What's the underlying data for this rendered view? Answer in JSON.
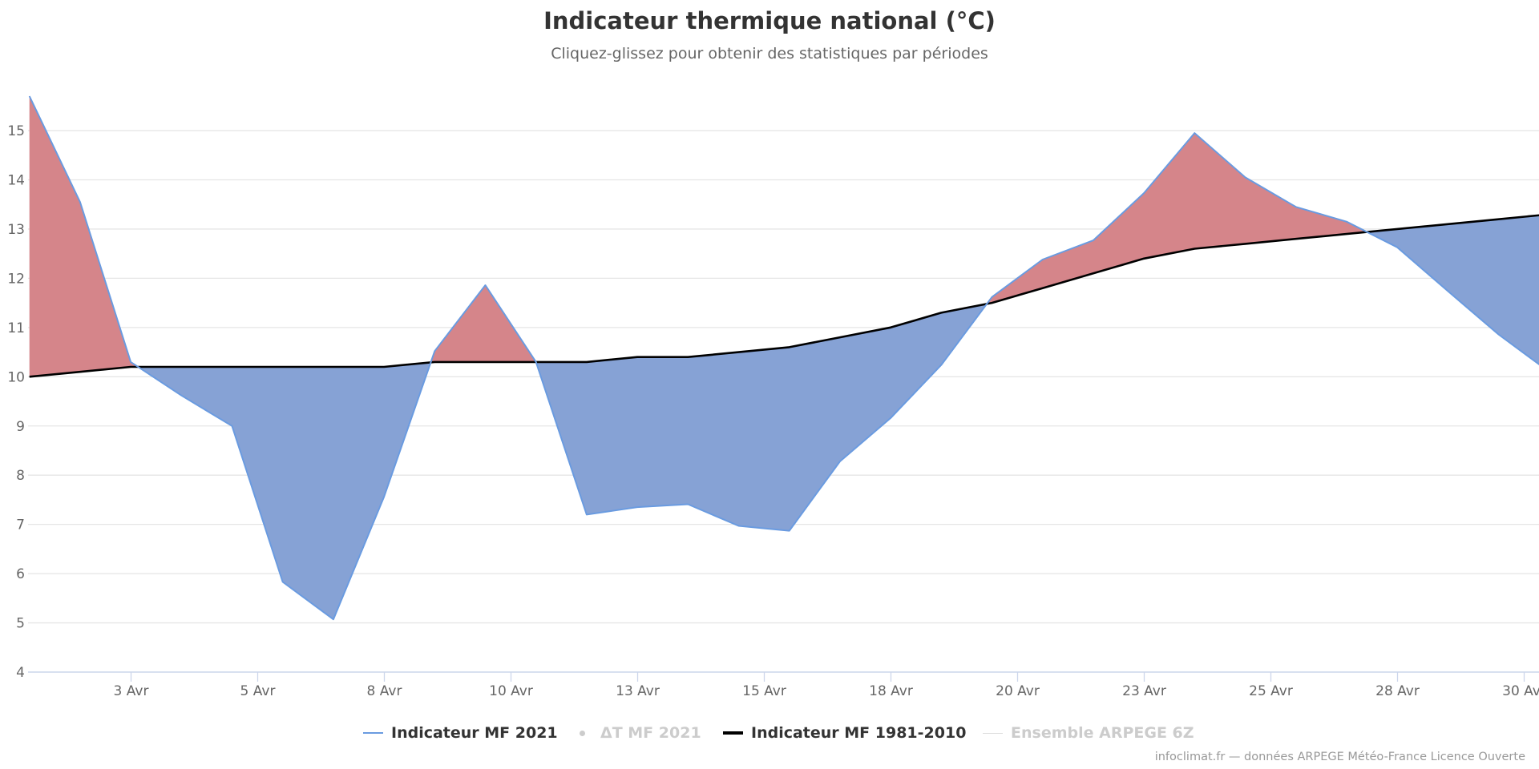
{
  "chart_data": {
    "type": "area",
    "title": "Indicateur thermique national (°C)",
    "subtitle": "Cliquez-glissez pour obtenir des statistiques par périodes",
    "xlabel": "",
    "ylabel": "",
    "ylim": [
      4,
      15.8
    ],
    "xlim_days": [
      1,
      30.8
    ],
    "grid": true,
    "y_ticks": [
      4,
      5,
      6,
      7,
      8,
      9,
      10,
      11,
      12,
      13,
      14,
      15
    ],
    "x_ticks": [
      {
        "day": 2.5,
        "label": "3 Avr"
      },
      {
        "day": 5.0,
        "label": "5 Avr"
      },
      {
        "day": 7.5,
        "label": "8 Avr"
      },
      {
        "day": 10.0,
        "label": "10 Avr"
      },
      {
        "day": 12.5,
        "label": "13 Avr"
      },
      {
        "day": 15.0,
        "label": "15 Avr"
      },
      {
        "day": 17.5,
        "label": "18 Avr"
      },
      {
        "day": 20.0,
        "label": "20 Avr"
      },
      {
        "day": 22.5,
        "label": "23 Avr"
      },
      {
        "day": 25.0,
        "label": "25 Avr"
      },
      {
        "day": 27.5,
        "label": "28 Avr"
      },
      {
        "day": 30.0,
        "label": "30 Avr"
      }
    ],
    "x_days": [
      1,
      2,
      3,
      4,
      5,
      6,
      7,
      8,
      9,
      10,
      11,
      12,
      13,
      14,
      15,
      16,
      17,
      18,
      19,
      20,
      21,
      22,
      23,
      24,
      25,
      26,
      27,
      28,
      29,
      30,
      31
    ],
    "series": [
      {
        "name": "Indicateur MF 2021",
        "color": "#6a9be0",
        "visible": true,
        "values": [
          15.7,
          13.55,
          10.3,
          9.62,
          9.0,
          5.83,
          5.07,
          7.56,
          10.52,
          11.86,
          10.3,
          7.2,
          7.35,
          7.41,
          6.97,
          6.87,
          8.28,
          9.16,
          10.24,
          11.62,
          12.38,
          12.77,
          13.73,
          14.95,
          14.05,
          13.45,
          13.15,
          12.63,
          11.74,
          10.86,
          10.1
        ]
      },
      {
        "name": "ΔT MF 2021",
        "color": "#cccccc",
        "visible": false,
        "values": []
      },
      {
        "name": "Indicateur MF 1981-2010",
        "color": "#000000",
        "visible": true,
        "values": [
          10.0,
          10.1,
          10.2,
          10.2,
          10.2,
          10.2,
          10.2,
          10.2,
          10.3,
          10.3,
          10.3,
          10.3,
          10.4,
          10.4,
          10.5,
          10.6,
          10.8,
          11.0,
          11.3,
          11.5,
          11.8,
          12.1,
          12.4,
          12.6,
          12.7,
          12.8,
          12.9,
          13.0,
          13.1,
          13.2,
          13.3
        ]
      },
      {
        "name": "Ensemble ARPEGE 6Z",
        "color": "#cccccc",
        "visible": false,
        "values": []
      }
    ],
    "fill_colors": {
      "above_normal": "#d5858a",
      "below_normal": "#86a2d5"
    },
    "legend_position": "bottom-center"
  },
  "legend": [
    {
      "label": "Indicateur MF 2021",
      "symbol": "line",
      "color": "#6a9be0",
      "state": "active"
    },
    {
      "label": "ΔT MF 2021",
      "symbol": "dot",
      "color": "#cccccc",
      "state": "hidden"
    },
    {
      "label": "Indicateur MF 1981-2010",
      "symbol": "line-thick",
      "color": "#000000",
      "state": "active"
    },
    {
      "label": "Ensemble ARPEGE 6Z",
      "symbol": "line",
      "color": "#cccccc",
      "state": "hidden"
    }
  ],
  "credits": "infoclimat.fr — données ARPEGE Météo-France Licence Ouverte"
}
